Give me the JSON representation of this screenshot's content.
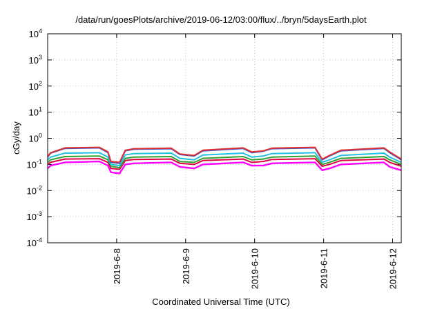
{
  "chart_data": {
    "type": "line",
    "title": "/data/run/goesPlots/archive/2019-06-12/03:00/flux/../bryn/5daysEarth.plot",
    "xlabel": "Coordinated Universal Time (UTC)",
    "ylabel": "cGy/day",
    "x_range": [
      "2019-06-07 00:00",
      "2019-06-12 03:00"
    ],
    "x_ticks": [
      "2019-6-8",
      "2019-6-9",
      "2019-6-10",
      "2019-6-11",
      "2019-6-12"
    ],
    "yscale": "log",
    "ylim": [
      0.0001,
      10000
    ],
    "y_ticks": [
      {
        "base": "10",
        "exp": "4"
      },
      {
        "base": "10",
        "exp": "3"
      },
      {
        "base": "10",
        "exp": "2"
      },
      {
        "base": "10",
        "exp": "1"
      },
      {
        "base": "10",
        "exp": "0"
      },
      {
        "base": "10",
        "exp": "-1"
      },
      {
        "base": "10",
        "exp": "-2"
      },
      {
        "base": "10",
        "exp": "-3"
      },
      {
        "base": "10",
        "exp": "-4"
      }
    ],
    "grid": true,
    "legend": "none",
    "x_breakpoints": [
      "2019-06-07 00:00",
      "2019-06-07 01:00",
      "2019-06-07 06:00",
      "2019-06-07 18:00",
      "2019-06-07 21:00",
      "2019-06-07 22:00",
      "2019-06-08 01:00",
      "2019-06-08 03:00",
      "2019-06-08 06:00",
      "2019-06-08 19:00",
      "2019-06-08 22:00",
      "2019-06-09 03:00",
      "2019-06-09 06:00",
      "2019-06-09 20:00",
      "2019-06-09 23:00",
      "2019-06-10 03:00",
      "2019-06-10 06:00",
      "2019-06-10 21:00",
      "2019-06-10 23:30",
      "2019-06-11 02:00",
      "2019-06-11 06:00",
      "2019-06-11 21:00",
      "2019-06-11 23:00",
      "2019-06-12 03:00"
    ],
    "series": [
      {
        "color": "#e03030",
        "values": [
          0.2,
          0.28,
          0.43,
          0.45,
          0.3,
          0.13,
          0.12,
          0.35,
          0.4,
          0.42,
          0.25,
          0.22,
          0.35,
          0.43,
          0.3,
          0.33,
          0.42,
          0.45,
          0.16,
          0.22,
          0.35,
          0.43,
          0.3,
          0.16
        ]
      },
      {
        "color": "#3a55d0",
        "values": [
          0.19,
          0.27,
          0.41,
          0.43,
          0.28,
          0.12,
          0.11,
          0.33,
          0.38,
          0.4,
          0.24,
          0.21,
          0.33,
          0.41,
          0.28,
          0.32,
          0.4,
          0.43,
          0.15,
          0.21,
          0.33,
          0.41,
          0.28,
          0.15
        ]
      },
      {
        "color": "#20c0e0",
        "values": [
          0.15,
          0.19,
          0.27,
          0.28,
          0.19,
          0.1,
          0.09,
          0.23,
          0.26,
          0.27,
          0.17,
          0.15,
          0.23,
          0.27,
          0.19,
          0.21,
          0.26,
          0.28,
          0.12,
          0.15,
          0.22,
          0.27,
          0.19,
          0.12
        ]
      },
      {
        "color": "#30a030",
        "values": [
          0.12,
          0.15,
          0.2,
          0.21,
          0.15,
          0.085,
          0.075,
          0.17,
          0.19,
          0.2,
          0.13,
          0.12,
          0.17,
          0.2,
          0.15,
          0.16,
          0.19,
          0.21,
          0.1,
          0.12,
          0.17,
          0.2,
          0.15,
          0.1
        ]
      },
      {
        "color": "#e00040",
        "values": [
          0.1,
          0.12,
          0.16,
          0.165,
          0.12,
          0.07,
          0.065,
          0.14,
          0.155,
          0.16,
          0.11,
          0.1,
          0.14,
          0.16,
          0.12,
          0.13,
          0.155,
          0.165,
          0.085,
          0.1,
          0.14,
          0.16,
          0.12,
          0.085
        ]
      },
      {
        "color": "#ff00ff",
        "values": [
          0.07,
          0.09,
          0.12,
          0.13,
          0.09,
          0.05,
          0.045,
          0.1,
          0.11,
          0.12,
          0.08,
          0.07,
          0.1,
          0.12,
          0.09,
          0.09,
          0.11,
          0.12,
          0.06,
          0.07,
          0.1,
          0.12,
          0.08,
          0.06
        ]
      }
    ]
  }
}
